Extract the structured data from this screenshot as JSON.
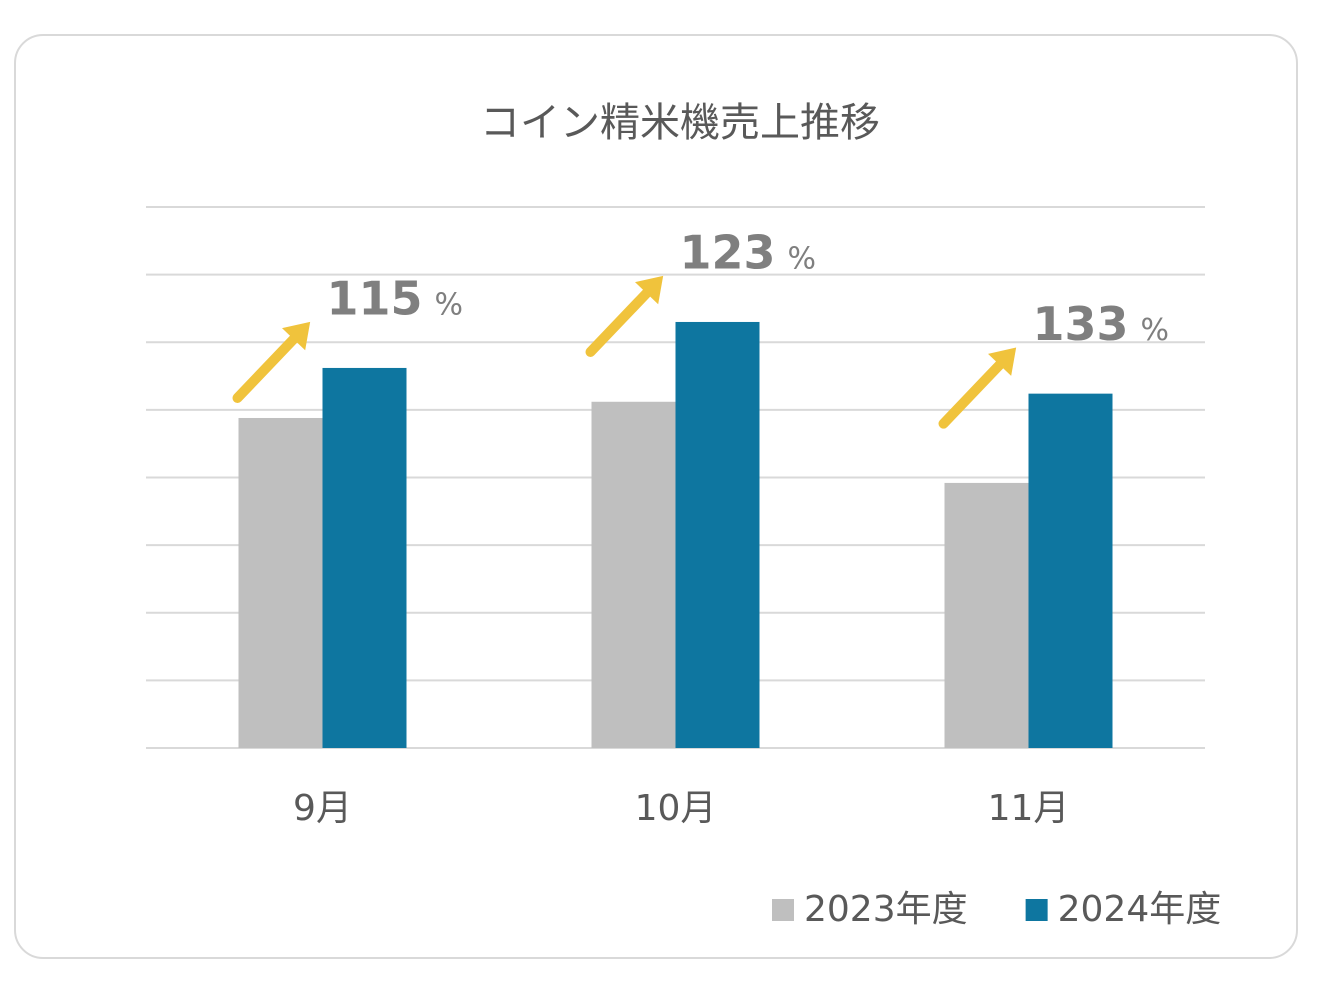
{
  "chart_data": {
    "type": "bar",
    "title": "コイン精米機売上推移",
    "categories": [
      "9月",
      "10月",
      "11月"
    ],
    "series": [
      {
        "name": "2023年度",
        "color": "#bfbfbf",
        "values": [
          4.88,
          5.12,
          3.92
        ]
      },
      {
        "name": "2024年度",
        "color": "#0e76a0",
        "values": [
          5.62,
          6.3,
          5.24
        ]
      }
    ],
    "growth_labels": [
      {
        "number": "115",
        "unit": "%"
      },
      {
        "number": "123",
        "unit": "%"
      },
      {
        "number": "133",
        "unit": "%"
      }
    ],
    "arrow_color": "#f0c33c",
    "ylim": [
      0,
      8
    ],
    "yticks": [
      0,
      1,
      2,
      3,
      4,
      5,
      6,
      7,
      8
    ],
    "show_tick_labels": false,
    "grid": true,
    "legend": "bottom-right"
  }
}
